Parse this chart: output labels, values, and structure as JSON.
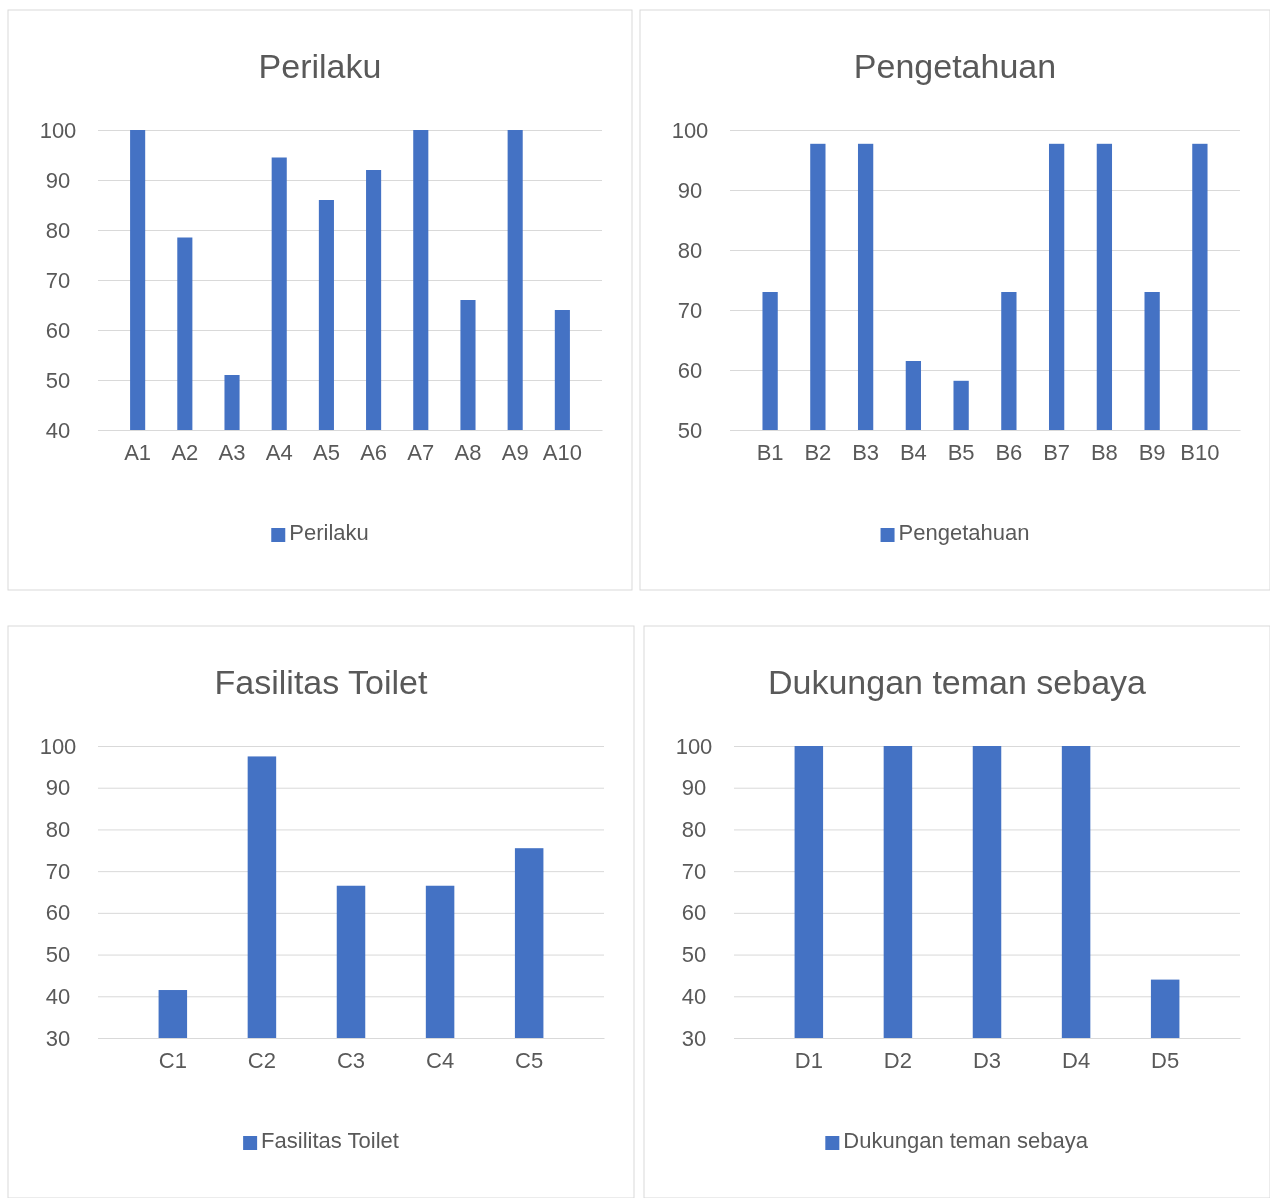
{
  "chart_data": [
    {
      "type": "bar",
      "title": "Perilaku",
      "categories": [
        "A1",
        "A2",
        "A3",
        "A4",
        "A5",
        "A6",
        "A7",
        "A8",
        "A9",
        "A10"
      ],
      "series": [
        {
          "name": "Perilaku",
          "color": "#4472c4",
          "values": [
            100,
            78.5,
            51,
            94.5,
            86,
            92,
            100,
            66,
            100,
            64
          ]
        }
      ],
      "ylim": [
        40,
        100
      ],
      "yticks": [
        40,
        50,
        60,
        70,
        80,
        90,
        100
      ],
      "grid": "y",
      "legend": "bottom"
    },
    {
      "type": "bar",
      "title": "Pengetahuan",
      "categories": [
        "B1",
        "B2",
        "B3",
        "B4",
        "B5",
        "B6",
        "B7",
        "B8",
        "B9",
        "B10"
      ],
      "series": [
        {
          "name": "Pengetahuan",
          "color": "#4472c4",
          "values": [
            73,
            97.7,
            97.7,
            61.5,
            58.2,
            73,
            97.7,
            97.7,
            73,
            97.7
          ]
        }
      ],
      "ylim": [
        50,
        100
      ],
      "yticks": [
        50,
        60,
        70,
        80,
        90,
        100
      ],
      "grid": "y",
      "legend": "bottom"
    },
    {
      "type": "bar",
      "title": "Fasilitas Toilet",
      "categories": [
        "C1",
        "C2",
        "C3",
        "C4",
        "C5"
      ],
      "series": [
        {
          "name": "Fasilitas Toilet",
          "color": "#4472c4",
          "values": [
            41.5,
            97.5,
            66.5,
            66.5,
            75.5
          ]
        }
      ],
      "ylim": [
        30,
        100
      ],
      "yticks": [
        30,
        40,
        50,
        60,
        70,
        80,
        90,
        100
      ],
      "grid": "y",
      "legend": "bottom"
    },
    {
      "type": "bar",
      "title": "Dukungan teman sebaya",
      "categories": [
        "D1",
        "D2",
        "D3",
        "D4",
        "D5"
      ],
      "series": [
        {
          "name": "Dukungan teman sebaya",
          "color": "#4472c4",
          "values": [
            100,
            100,
            100,
            100,
            44
          ]
        }
      ],
      "ylim": [
        30,
        100
      ],
      "yticks": [
        30,
        40,
        50,
        60,
        70,
        80,
        90,
        100
      ],
      "grid": "y",
      "legend": "bottom"
    }
  ]
}
